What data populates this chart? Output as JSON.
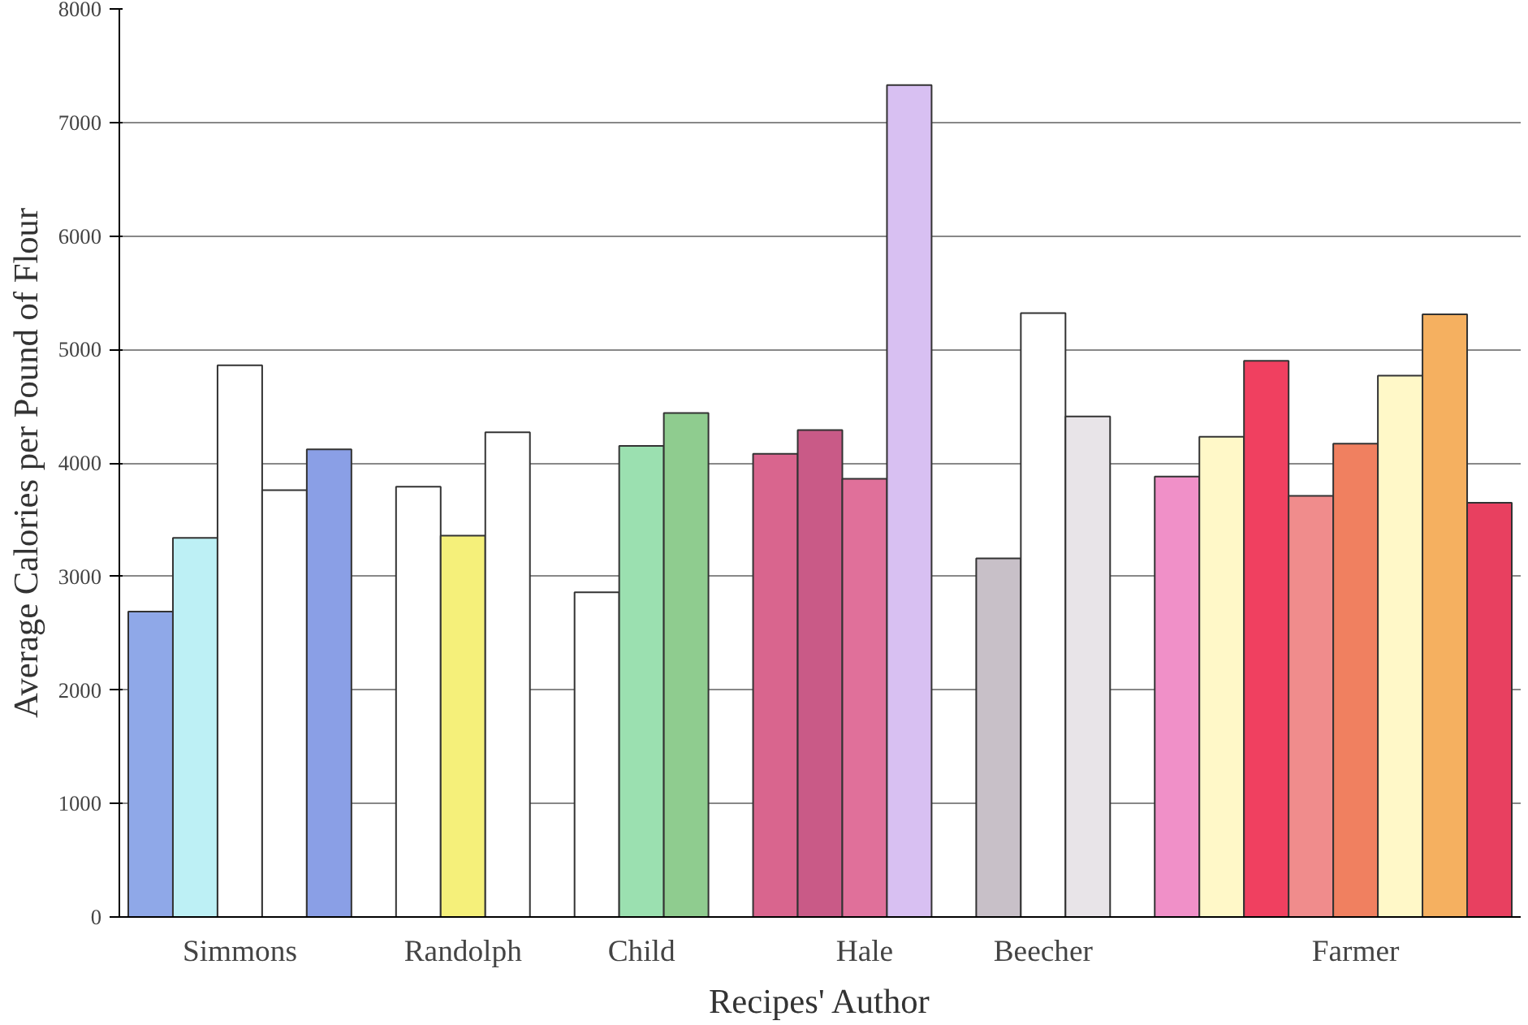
{
  "chart_data": {
    "type": "bar",
    "xlabel": "Recipes' Author",
    "ylabel": "Average Calories per Pound of Flour",
    "categories": [
      null,
      null,
      "Simmons",
      null,
      null,
      null,
      null,
      "Randolph",
      null,
      null,
      null,
      "Child",
      null,
      null,
      null,
      null,
      "Hale",
      null,
      null,
      null,
      "Beecher",
      null,
      null,
      null,
      null,
      null,
      null,
      "Farmer",
      null,
      null,
      null
    ],
    "values": [
      2690,
      3340,
      4860,
      3760,
      4120,
      null,
      3790,
      3360,
      4270,
      null,
      2860,
      4150,
      4440,
      null,
      4080,
      4290,
      3860,
      7330,
      null,
      3160,
      5320,
      4410,
      null,
      3880,
      4230,
      4900,
      3710,
      4170,
      4770,
      5310,
      3650
    ],
    "colors": [
      "#8fa8e8",
      "#bdf0f5",
      "#ffffff",
      "#ffffff",
      "#8a9fe6",
      "#ffffff",
      "#ffffff",
      "#f5f07a",
      "#ffffff",
      "#ffffff",
      "#ffffff",
      "#9be0b0",
      "#8fcc8f",
      "#ffffff",
      "#d9658e",
      "#c95a87",
      "#e0709a",
      "#d8c0f2",
      "#ffffff",
      "#c8c0c8",
      "#ffffff",
      "#e8e4e8",
      "#ffffff",
      "#f090c8",
      "#fff8c8",
      "#f04060",
      "#f08c8c",
      "#f08060",
      "#fff8c8",
      "#f5b060",
      "#e84060"
    ],
    "ylim": [
      0,
      8000
    ],
    "yticks": [
      0,
      1000,
      2000,
      3000,
      4000,
      5000,
      6000,
      7000,
      8000
    ],
    "grid": "y"
  }
}
